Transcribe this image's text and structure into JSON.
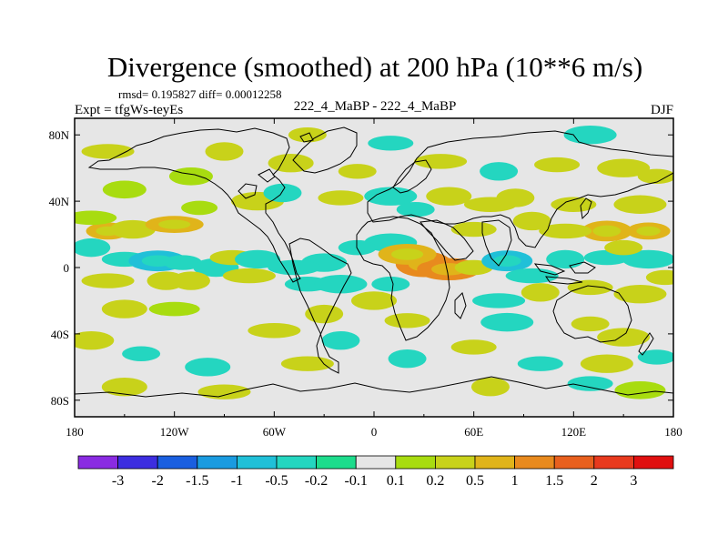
{
  "chart_data": {
    "type": "heatmap",
    "title": "Divergence (smoothed) at 200 hPa (10**6 m/s)",
    "stats_line": "rmsd= 0.195827 diff= 0.00012258",
    "experiment_label": "Expt = tfgWs-teyEs",
    "comparison_label": "222_4_MaBP - 222_4_MaBP",
    "season": "DJF",
    "x_axis": {
      "range": [
        -180,
        180
      ],
      "ticks": [
        -180,
        -120,
        -60,
        0,
        60,
        120,
        180
      ],
      "tick_labels": [
        "180",
        "120W",
        "60W",
        "0",
        "60E",
        "120E",
        "180"
      ]
    },
    "y_axis": {
      "range": [
        -90,
        90
      ],
      "ticks": [
        80,
        40,
        0,
        -40,
        -80
      ],
      "tick_labels": [
        "80N",
        "40N",
        "0",
        "40S",
        "80S"
      ]
    },
    "colorbar": {
      "labels": [
        "-3",
        "-2",
        "-1.5",
        "-1",
        "-0.5",
        "-0.2",
        "-0.1",
        "0.1",
        "0.2",
        "0.5",
        "1",
        "1.5",
        "2",
        "3"
      ],
      "colors": [
        "#8a2be2",
        "#3d2ee0",
        "#1a5fe0",
        "#1a9be0",
        "#20c0d8",
        "#24d6c0",
        "#1ddc8c",
        "#e6e6e6",
        "#a8dc10",
        "#c8d21a",
        "#e0b41a",
        "#e88a1e",
        "#e8601e",
        "#e83a1e",
        "#e01010"
      ]
    },
    "anomaly_blobs": [
      {
        "lon": -160,
        "lat": 22,
        "value": 0.6
      },
      {
        "lon": -145,
        "lat": 23,
        "value": 0.3
      },
      {
        "lon": -120,
        "lat": 26,
        "value": 0.6
      },
      {
        "lon": -170,
        "lat": 12,
        "value": -0.3
      },
      {
        "lon": -150,
        "lat": 5,
        "value": -0.3
      },
      {
        "lon": -130,
        "lat": 4,
        "value": -0.6
      },
      {
        "lon": -115,
        "lat": 3,
        "value": -0.3
      },
      {
        "lon": -95,
        "lat": 0,
        "value": -0.3
      },
      {
        "lon": -160,
        "lat": -8,
        "value": 0.3
      },
      {
        "lon": -125,
        "lat": -8,
        "value": 0.3
      },
      {
        "lon": -85,
        "lat": 6,
        "value": 0.3
      },
      {
        "lon": -70,
        "lat": 40,
        "value": 0.3
      },
      {
        "lon": -105,
        "lat": 36,
        "value": 0.2
      },
      {
        "lon": -150,
        "lat": 47,
        "value": 0.2
      },
      {
        "lon": -170,
        "lat": 30,
        "value": 0.2
      },
      {
        "lon": -55,
        "lat": 45,
        "value": -0.3
      },
      {
        "lon": -20,
        "lat": 42,
        "value": 0.3
      },
      {
        "lon": 10,
        "lat": 43,
        "value": -0.3
      },
      {
        "lon": 25,
        "lat": 35,
        "value": -0.3
      },
      {
        "lon": 45,
        "lat": 43,
        "value": 0.3
      },
      {
        "lon": 70,
        "lat": 38,
        "value": 0.3
      },
      {
        "lon": 85,
        "lat": 42,
        "value": 0.3
      },
      {
        "lon": 120,
        "lat": 38,
        "value": 0.3
      },
      {
        "lon": 160,
        "lat": 38,
        "value": 0.3
      },
      {
        "lon": 165,
        "lat": 22,
        "value": 0.6
      },
      {
        "lon": 140,
        "lat": 22,
        "value": 0.6
      },
      {
        "lon": 115,
        "lat": 22,
        "value": 0.3
      },
      {
        "lon": 95,
        "lat": 28,
        "value": 0.3
      },
      {
        "lon": 60,
        "lat": 23,
        "value": 0.3
      },
      {
        "lon": 10,
        "lat": 15,
        "value": -0.3
      },
      {
        "lon": -10,
        "lat": 12,
        "value": -0.3
      },
      {
        "lon": -30,
        "lat": 3,
        "value": -0.3
      },
      {
        "lon": -48,
        "lat": 0,
        "value": -0.3
      },
      {
        "lon": 30,
        "lat": 2,
        "value": 1.3
      },
      {
        "lon": 45,
        "lat": -1,
        "value": 1.3
      },
      {
        "lon": 20,
        "lat": 8,
        "value": 0.6
      },
      {
        "lon": 60,
        "lat": 0,
        "value": 0.3
      },
      {
        "lon": 80,
        "lat": 4,
        "value": -0.6
      },
      {
        "lon": 95,
        "lat": -5,
        "value": -0.3
      },
      {
        "lon": 115,
        "lat": 5,
        "value": -0.3
      },
      {
        "lon": 140,
        "lat": 6,
        "value": -0.3
      },
      {
        "lon": 165,
        "lat": 5,
        "value": -0.3
      },
      {
        "lon": 150,
        "lat": 12,
        "value": 0.3
      },
      {
        "lon": -70,
        "lat": 5,
        "value": -0.3
      },
      {
        "lon": -75,
        "lat": -5,
        "value": 0.3
      },
      {
        "lon": -110,
        "lat": -8,
        "value": 0.3
      },
      {
        "lon": -40,
        "lat": -10,
        "value": -0.3
      },
      {
        "lon": -20,
        "lat": -10,
        "value": -0.3
      },
      {
        "lon": 10,
        "lat": -10,
        "value": -0.3
      },
      {
        "lon": 0,
        "lat": -20,
        "value": 0.3
      },
      {
        "lon": 75,
        "lat": -20,
        "value": -0.3
      },
      {
        "lon": 100,
        "lat": -15,
        "value": 0.3
      },
      {
        "lon": 130,
        "lat": -12,
        "value": 0.3
      },
      {
        "lon": 160,
        "lat": -16,
        "value": 0.3
      },
      {
        "lon": 175,
        "lat": -6,
        "value": 0.3
      },
      {
        "lon": -150,
        "lat": -25,
        "value": 0.3
      },
      {
        "lon": -120,
        "lat": -25,
        "value": 0.2
      },
      {
        "lon": -30,
        "lat": -28,
        "value": 0.3
      },
      {
        "lon": 20,
        "lat": -32,
        "value": 0.3
      },
      {
        "lon": 80,
        "lat": -33,
        "value": -0.3
      },
      {
        "lon": 130,
        "lat": -34,
        "value": 0.3
      },
      {
        "lon": -170,
        "lat": -44,
        "value": 0.3
      },
      {
        "lon": -60,
        "lat": -38,
        "value": 0.3
      },
      {
        "lon": -20,
        "lat": -44,
        "value": -0.3
      },
      {
        "lon": 60,
        "lat": -48,
        "value": 0.3
      },
      {
        "lon": 150,
        "lat": -42,
        "value": 0.3
      },
      {
        "lon": -140,
        "lat": -52,
        "value": -0.3
      },
      {
        "lon": -100,
        "lat": -60,
        "value": -0.3
      },
      {
        "lon": -40,
        "lat": -58,
        "value": 0.3
      },
      {
        "lon": 20,
        "lat": -55,
        "value": -0.3
      },
      {
        "lon": 100,
        "lat": -58,
        "value": -0.3
      },
      {
        "lon": 140,
        "lat": -58,
        "value": 0.3
      },
      {
        "lon": 170,
        "lat": -54,
        "value": -0.3
      },
      {
        "lon": -150,
        "lat": -72,
        "value": 0.3
      },
      {
        "lon": -90,
        "lat": -75,
        "value": 0.3
      },
      {
        "lon": 70,
        "lat": -72,
        "value": 0.3
      },
      {
        "lon": 130,
        "lat": -70,
        "value": -0.3
      },
      {
        "lon": 160,
        "lat": -74,
        "value": 0.2
      },
      {
        "lon": -10,
        "lat": 58,
        "value": 0.3
      },
      {
        "lon": -50,
        "lat": 63,
        "value": 0.3
      },
      {
        "lon": 40,
        "lat": 64,
        "value": 0.3
      },
      {
        "lon": 75,
        "lat": 58,
        "value": -0.3
      },
      {
        "lon": 110,
        "lat": 62,
        "value": 0.3
      },
      {
        "lon": 150,
        "lat": 60,
        "value": 0.3
      },
      {
        "lon": 170,
        "lat": 55,
        "value": 0.3
      },
      {
        "lon": -110,
        "lat": 55,
        "value": 0.2
      },
      {
        "lon": -160,
        "lat": 70,
        "value": 0.3
      },
      {
        "lon": -90,
        "lat": 70,
        "value": 0.3
      },
      {
        "lon": 10,
        "lat": 75,
        "value": -0.3
      },
      {
        "lon": 130,
        "lat": 80,
        "value": -0.3
      },
      {
        "lon": -40,
        "lat": 80,
        "value": 0.3
      }
    ]
  }
}
